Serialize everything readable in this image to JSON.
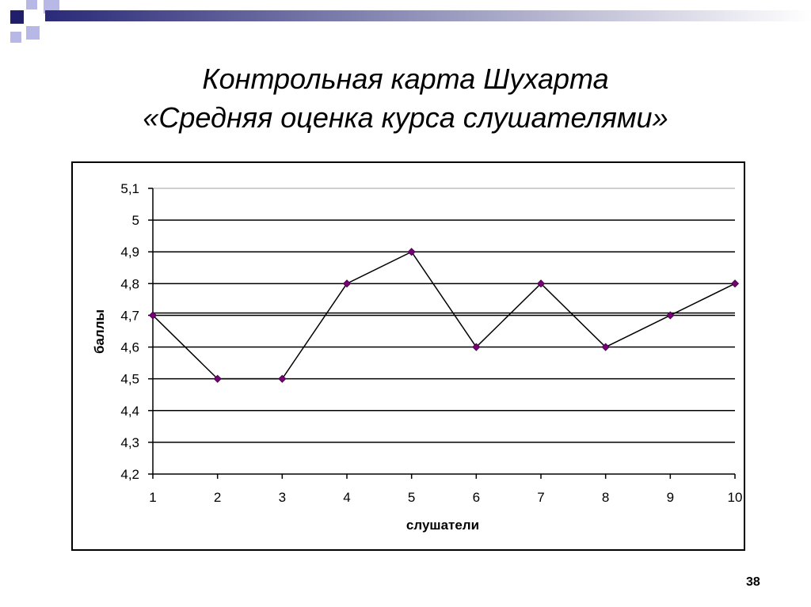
{
  "slide": {
    "title_line1": "Контрольная карта Шухарта",
    "title_line2": "«Средняя оценка курса слушателями»",
    "page_number": "38"
  },
  "colors": {
    "decor_navy": "#1f1f6b",
    "decor_lavender": "#b8b8e6",
    "decor_gradient_start": "#2a2a78",
    "decor_gradient_end": "#ffffff",
    "grid": "#000000",
    "line": "#000000",
    "marker": "#7a007a"
  },
  "chart_data": {
    "type": "line",
    "title": "",
    "xlabel": "слушатели",
    "ylabel": "баллы",
    "x": [
      1,
      2,
      3,
      4,
      5,
      6,
      7,
      8,
      9,
      10
    ],
    "x_tick_labels": [
      "1",
      "2",
      "3",
      "4",
      "5",
      "6",
      "7",
      "8",
      "9",
      "10"
    ],
    "y_tick_labels": [
      "4,2",
      "4,3",
      "4,4",
      "4,5",
      "4,6",
      "4,7",
      "4,8",
      "4,9",
      "5",
      "5,1"
    ],
    "y_ticks": [
      4.2,
      4.3,
      4.4,
      4.5,
      4.6,
      4.7,
      4.8,
      4.9,
      5.0,
      5.1
    ],
    "ylim": [
      4.2,
      5.1
    ],
    "grid": true,
    "legend": "none",
    "series": [
      {
        "values": [
          4.7,
          4.5,
          4.5,
          4.8,
          4.9,
          4.6,
          4.8,
          4.6,
          4.7,
          4.8
        ]
      }
    ],
    "reference_lines": [
      4.7
    ]
  }
}
